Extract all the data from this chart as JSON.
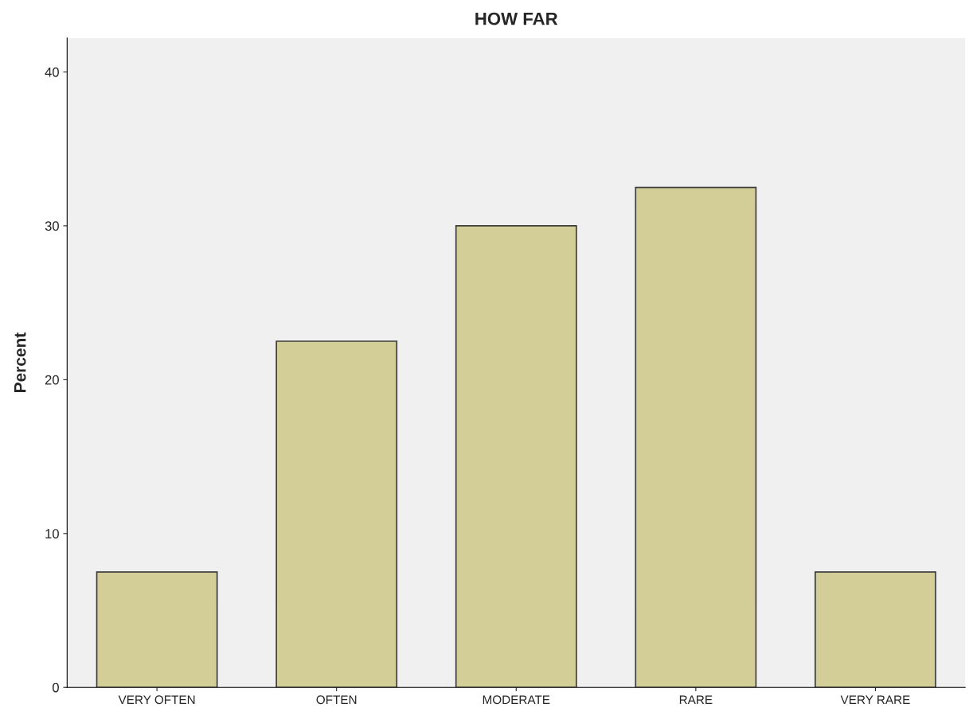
{
  "chart_data": {
    "type": "bar",
    "title": "HOW FAR",
    "ylabel": "Percent",
    "categories": [
      "VERY OFTEN",
      "OFTEN",
      "MODERATE",
      "RARE",
      "VERY RARE"
    ],
    "values": [
      7.5,
      22.5,
      30.0,
      32.5,
      7.5
    ],
    "color": "#d3ce97",
    "ylim": [
      0,
      42.2
    ],
    "yticks": [
      0,
      10,
      20,
      30,
      40
    ],
    "grid": false,
    "legend": false
  }
}
